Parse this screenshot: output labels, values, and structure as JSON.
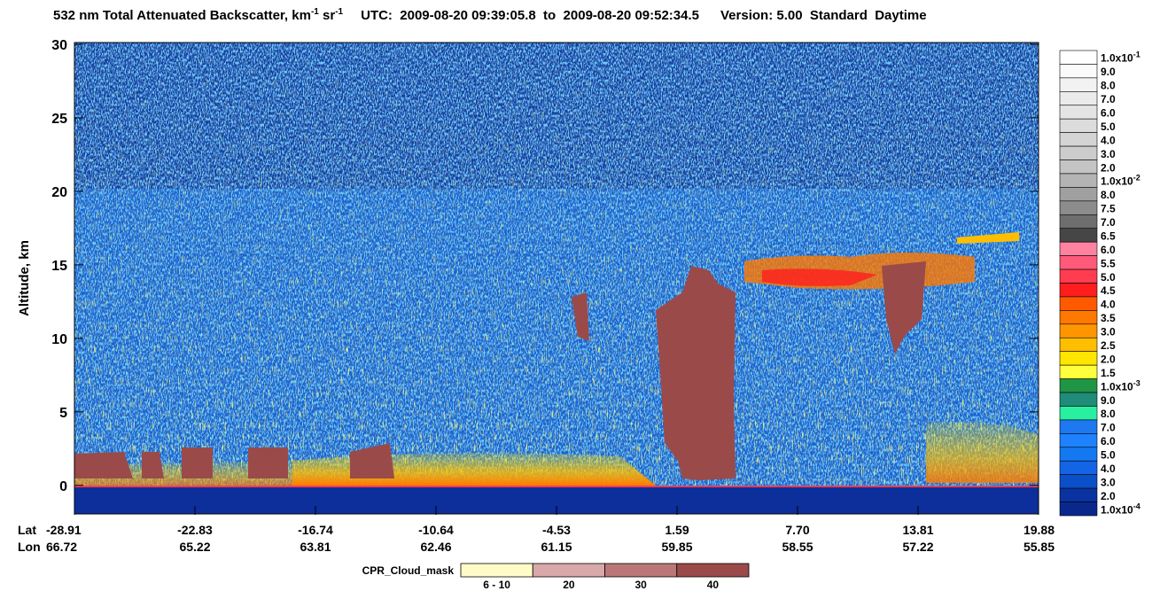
{
  "chart_data": {
    "type": "heatmap",
    "title": {
      "product": "532 nm Total Attenuated Backscatter, km",
      "unit_exp_1": "-1",
      "unit_sr": " sr",
      "unit_exp_2": "-1",
      "utc": "UTC:  2009-08-20 09:39:05.8  to  2009-08-20 09:52:34.5",
      "version": "Version: 5.00  Standard  Daytime"
    },
    "y_label": "Altitude, km",
    "ylim": [
      -2,
      30
    ],
    "yticks": [
      0,
      5,
      10,
      15,
      20,
      25,
      30
    ],
    "lat_label": "Lat",
    "lon_label": "Lon",
    "lat": [
      "-28.91",
      "-22.83",
      "-16.74",
      "-10.64",
      "-4.53",
      "1.59",
      "7.70",
      "13.81",
      "19.88"
    ],
    "lon": [
      "66.72",
      "65.22",
      "63.81",
      "62.46",
      "61.15",
      "59.85",
      "58.55",
      "57.22",
      "55.85"
    ],
    "colorbar": {
      "labels": [
        {
          "text": "1.0x10",
          "sup": "-1"
        },
        "9.0",
        "8.0",
        "7.0",
        "6.0",
        "5.0",
        "4.0",
        "3.0",
        "2.0",
        {
          "text": "1.0x10",
          "sup": "-2"
        },
        "8.0",
        "7.5",
        "7.0",
        "6.5",
        "6.0",
        "5.5",
        "5.0",
        "4.5",
        "4.0",
        "3.5",
        "3.0",
        "2.5",
        "2.0",
        "1.5",
        {
          "text": "1.0x10",
          "sup": "-3"
        },
        "9.0",
        "8.0",
        "7.0",
        "6.0",
        "5.0",
        "4.0",
        "3.0",
        "2.0",
        {
          "text": "1.0x10",
          "sup": "-4"
        }
      ],
      "colors": [
        "#ffffff",
        "#fafafa",
        "#f2f2f2",
        "#ebebeb",
        "#e4e4e4",
        "#dcdcdc",
        "#d4d4d4",
        "#cccccc",
        "#c4c4c4",
        "#b4b4b4",
        "#a0a0a0",
        "#8c8c8c",
        "#6e6e6e",
        "#464646",
        "#ff82a0",
        "#ff5a7a",
        "#ff3c50",
        "#ff1e1e",
        "#ff5a00",
        "#ff7800",
        "#ff9600",
        "#ffbe00",
        "#ffe600",
        "#ffff3c",
        "#1e9646",
        "#1e8c78",
        "#28f0a0",
        "#1e78f0",
        "#1e82ff",
        "#1478f0",
        "#1464e6",
        "#0a50c8",
        "#0a32a0",
        "#0a288c"
      ]
    },
    "cpr_legend": {
      "title": "CPR_Cloud_mask",
      "labels": [
        "6 - 10",
        "20",
        "30",
        "40"
      ],
      "colors": [
        "#fffcc8",
        "#d9a8a8",
        "#bb7777",
        "#9b4a4a"
      ]
    }
  }
}
